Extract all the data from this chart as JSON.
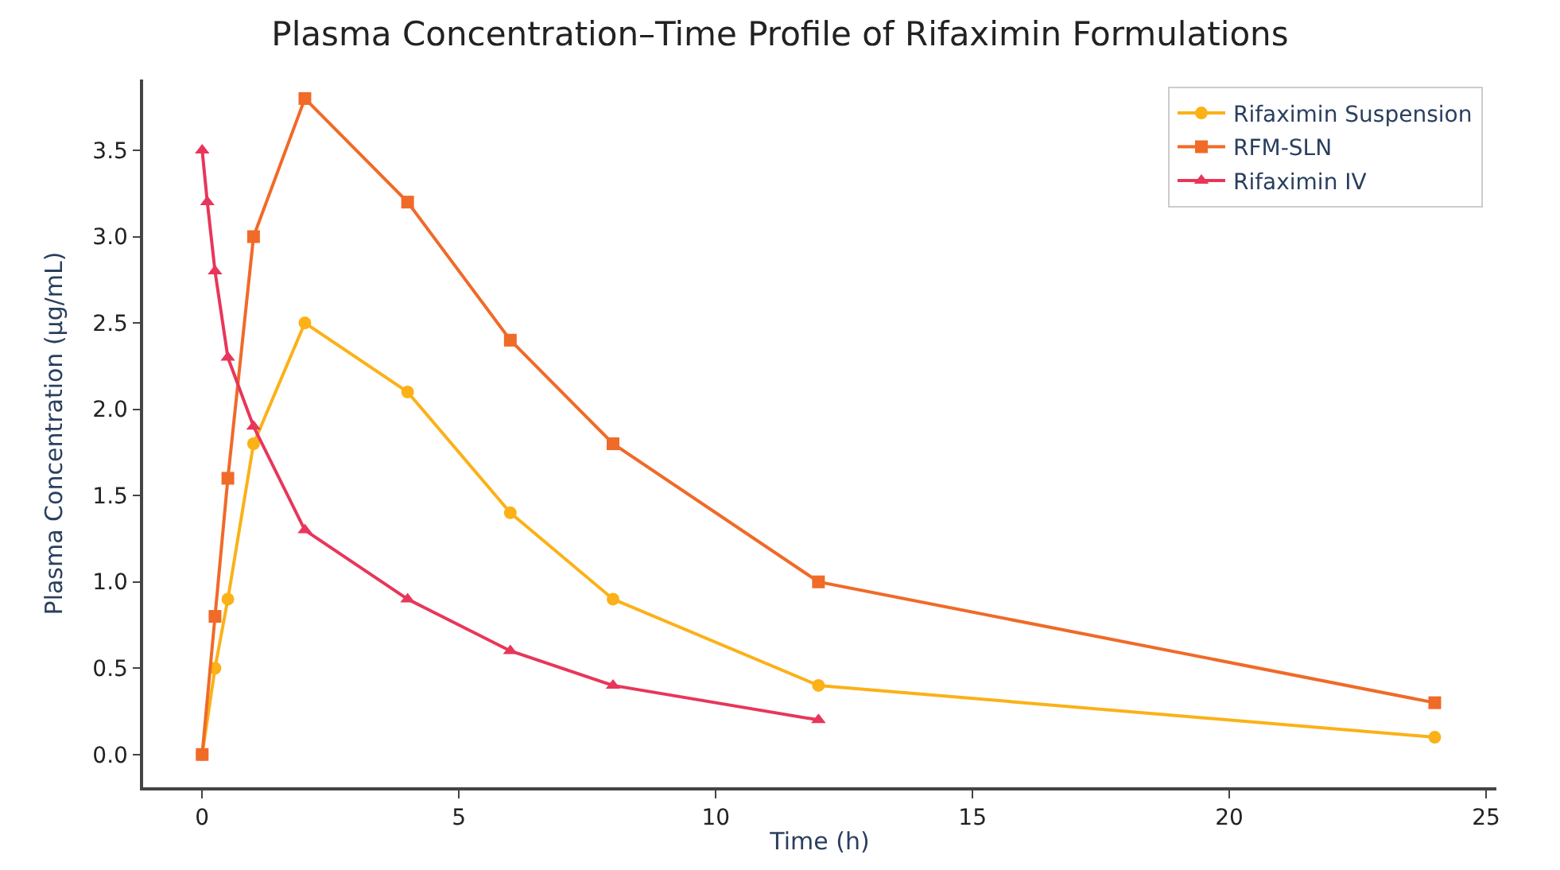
{
  "chart_data": {
    "type": "line",
    "title": "Plasma Concentration–Time Profile of Rifaximin Formulations",
    "xlabel": "Time (h)",
    "ylabel": "Plasma Concentration (μg/mL)",
    "xlim": [
      -1.15,
      25.2
    ],
    "ylim": [
      -0.19,
      3.91
    ],
    "xticks": [
      0,
      5,
      10,
      15,
      20,
      25
    ],
    "yticks": [
      {
        "value": 0,
        "label": "0.0"
      },
      {
        "value": 0.5,
        "label": "0.5"
      },
      {
        "value": 1,
        "label": "1.0"
      },
      {
        "value": 1.5,
        "label": "1.5"
      },
      {
        "value": 2,
        "label": "2.0"
      },
      {
        "value": 2.5,
        "label": "2.5"
      },
      {
        "value": 3,
        "label": "3.0"
      },
      {
        "value": 3.5,
        "label": "3.5"
      }
    ],
    "legend": "top right",
    "line_style": "solid",
    "series": [
      {
        "name": "Rifaximin Suspension",
        "color": "#fbb117",
        "marker": "circle",
        "x": [
          0,
          0.25,
          0.5,
          1,
          2,
          4,
          6,
          8,
          12,
          24
        ],
        "values": [
          0,
          0.5,
          0.9,
          1.8,
          2.5,
          2.1,
          1.4,
          0.9,
          0.4,
          0.1
        ]
      },
      {
        "name": "RFM-SLN",
        "color": "#f06a28",
        "marker": "square",
        "x": [
          0,
          0.25,
          0.5,
          1,
          2,
          4,
          6,
          8,
          12,
          24
        ],
        "values": [
          0,
          0.8,
          1.6,
          3.0,
          3.8,
          3.2,
          2.4,
          1.8,
          1.0,
          0.3
        ]
      },
      {
        "name": "Rifaximin IV",
        "color": "#e8365a",
        "marker": "triangle",
        "x": [
          0,
          0.1,
          0.25,
          0.5,
          1,
          2,
          4,
          6,
          8,
          12
        ],
        "values": [
          3.5,
          3.2,
          2.8,
          2.3,
          1.9,
          1.3,
          0.9,
          0.6,
          0.4,
          0.2
        ]
      }
    ]
  }
}
